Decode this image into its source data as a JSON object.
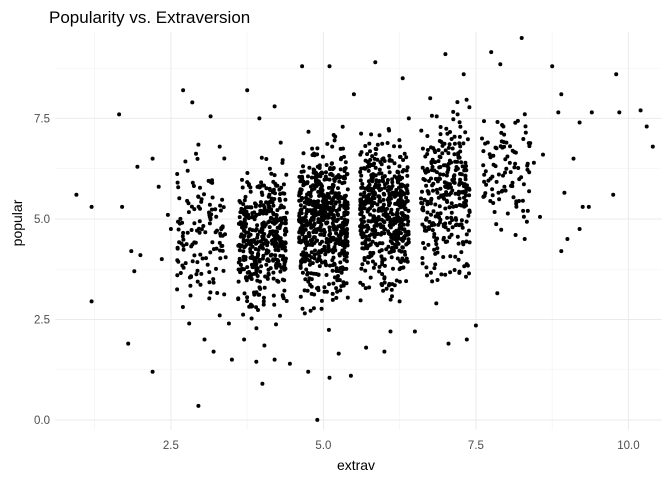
{
  "chart_data": {
    "type": "scatter",
    "title": "Popularity vs. Extraversion",
    "xlabel": "extrav",
    "ylabel": "popular",
    "xlim": [
      0.6,
      10.55
    ],
    "ylim": [
      -0.25,
      9.65
    ],
    "x_ticks": [
      2.5,
      5.0,
      7.5,
      10.0
    ],
    "x_tick_labels": [
      "2.5",
      "5.0",
      "7.5",
      "10.0"
    ],
    "y_ticks": [
      0.0,
      2.5,
      5.0,
      7.5
    ],
    "y_tick_labels": [
      "0.0",
      "2.5",
      "5.0",
      "7.5"
    ],
    "grid": true,
    "theme": "minimal",
    "point_color": "#000000",
    "points_note": "jittered columns at integer extrav values; approx. 2000 points",
    "points": [
      [
        0.95,
        5.6
      ],
      [
        1.2,
        5.3
      ],
      [
        1.65,
        7.6
      ],
      [
        1.7,
        5.3
      ],
      [
        1.2,
        2.95
      ],
      [
        1.85,
        4.2
      ],
      [
        1.9,
        3.7
      ],
      [
        2.0,
        4.1
      ],
      [
        1.95,
        6.3
      ],
      [
        1.8,
        1.9
      ],
      [
        2.2,
        6.5
      ],
      [
        2.3,
        5.8
      ],
      [
        2.35,
        4.0
      ],
      [
        2.45,
        5.1
      ],
      [
        2.5,
        4.75
      ],
      [
        2.2,
        1.2
      ],
      [
        2.7,
        8.2
      ],
      [
        2.85,
        7.9
      ],
      [
        3.15,
        7.55
      ],
      [
        2.95,
        6.85
      ],
      [
        3.3,
        6.8
      ],
      [
        2.8,
        2.4
      ],
      [
        3.05,
        2.0
      ],
      [
        3.45,
        2.4
      ],
      [
        2.95,
        0.35
      ],
      [
        3.5,
        1.5
      ],
      [
        3.2,
        1.7
      ],
      [
        3.3,
        2.6
      ],
      [
        3.75,
        8.2
      ],
      [
        4.2,
        7.8
      ],
      [
        3.95,
        7.5
      ],
      [
        4.3,
        6.9
      ],
      [
        4.0,
        0.9
      ],
      [
        4.2,
        1.5
      ],
      [
        3.7,
        2.0
      ],
      [
        3.9,
        1.45
      ],
      [
        4.45,
        1.4
      ],
      [
        4.65,
        8.8
      ],
      [
        5.1,
        8.8
      ],
      [
        5.5,
        8.1
      ],
      [
        5.45,
        1.1
      ],
      [
        5.1,
        1.05
      ],
      [
        4.9,
        0.0
      ],
      [
        4.75,
        1.2
      ],
      [
        5.25,
        1.65
      ],
      [
        5.85,
        8.9
      ],
      [
        6.3,
        8.5
      ],
      [
        6.0,
        1.7
      ],
      [
        5.7,
        1.8
      ],
      [
        6.1,
        2.2
      ],
      [
        6.5,
        2.2
      ],
      [
        6.4,
        7.5
      ],
      [
        7.0,
        9.1
      ],
      [
        6.75,
        8.0
      ],
      [
        7.3,
        8.6
      ],
      [
        7.05,
        1.9
      ],
      [
        7.5,
        2.35
      ],
      [
        6.85,
        2.9
      ],
      [
        7.2,
        7.6
      ],
      [
        7.35,
        2.0
      ],
      [
        7.75,
        9.15
      ],
      [
        8.25,
        9.5
      ],
      [
        8.6,
        6.6
      ],
      [
        7.6,
        7.0
      ],
      [
        8.0,
        6.9
      ],
      [
        7.95,
        7.3
      ],
      [
        8.35,
        5.2
      ],
      [
        8.3,
        4.5
      ],
      [
        8.15,
        4.6
      ],
      [
        7.85,
        3.15
      ],
      [
        8.55,
        5.05
      ],
      [
        7.9,
        8.85
      ],
      [
        8.45,
        6.4
      ],
      [
        8.1,
        5.9
      ],
      [
        8.75,
        8.8
      ],
      [
        8.9,
        8.1
      ],
      [
        8.85,
        7.65
      ],
      [
        9.2,
        7.4
      ],
      [
        9.4,
        7.65
      ],
      [
        9.1,
        6.5
      ],
      [
        9.25,
        5.3
      ],
      [
        9.35,
        5.3
      ],
      [
        8.95,
        5.65
      ],
      [
        9.0,
        4.5
      ],
      [
        9.2,
        4.75
      ],
      [
        8.9,
        4.2
      ],
      [
        9.8,
        8.6
      ],
      [
        9.85,
        7.65
      ],
      [
        10.2,
        7.7
      ],
      [
        10.3,
        7.3
      ],
      [
        10.4,
        6.8
      ],
      [
        9.75,
        5.6
      ]
    ]
  }
}
